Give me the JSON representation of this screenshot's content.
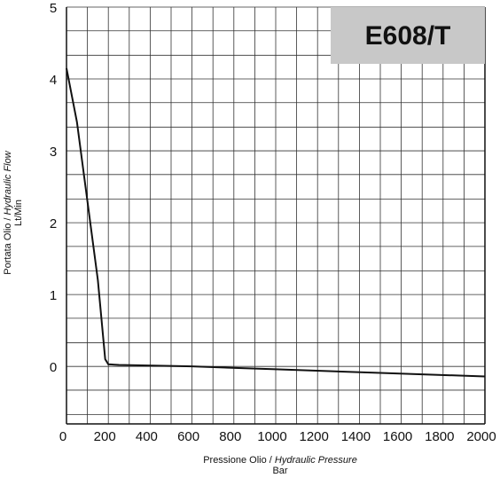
{
  "chart_data": {
    "type": "line",
    "title": "E608/T",
    "x_label": [
      "Pressione Olio / ",
      "Hydraulic Pressure"
    ],
    "x_unit": "Bar",
    "y_label": [
      "Portata Olio / ",
      "Hydraulic Flow"
    ],
    "y_unit": "Lt/Min",
    "xlim": [
      0,
      2000
    ],
    "ylim": [
      -0.8,
      5
    ],
    "xticks": [
      0,
      200,
      400,
      600,
      800,
      1000,
      1200,
      1400,
      1600,
      1800,
      2000
    ],
    "yticks": [
      0,
      1,
      2,
      3,
      4,
      5
    ],
    "minor_xticks": [
      100,
      300,
      500,
      700,
      900,
      1100,
      1300,
      1500,
      1700,
      1900
    ],
    "minor_yticks": [
      -0.67,
      -0.33,
      0.33,
      0.67,
      1.33,
      1.67,
      2.33,
      2.67,
      3.33,
      3.67,
      4.33,
      4.67
    ],
    "grid": true,
    "series": [
      {
        "color": "#111111",
        "x": [
          0,
          50,
          100,
          150,
          185,
          200,
          250,
          600,
          1000,
          1500,
          2000
        ],
        "values": [
          4.15,
          3.4,
          2.3,
          1.2,
          0.1,
          0.03,
          0.02,
          0.0,
          -0.04,
          -0.09,
          -0.14
        ]
      }
    ]
  }
}
